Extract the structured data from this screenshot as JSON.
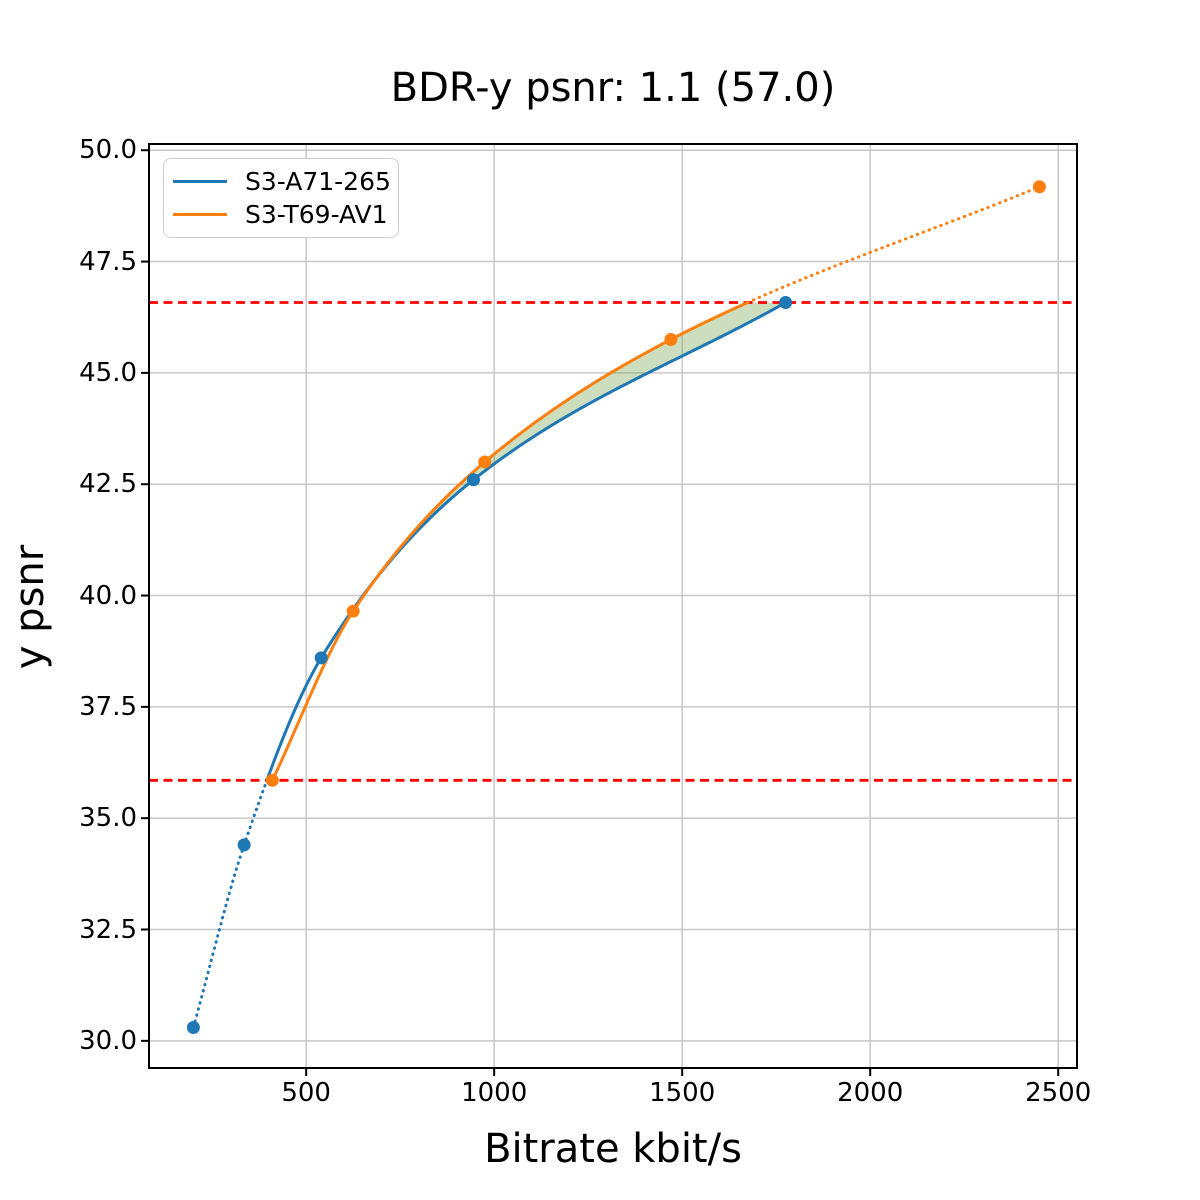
{
  "figure": {
    "title": "BDR-y psnr: 1.1 (57.0)",
    "xlabel": "Bitrate kbit/s",
    "ylabel": "y psnr"
  },
  "legend": {
    "position": "upper left",
    "items": [
      {
        "label": "S3-A71-265",
        "color": "#1f77b4"
      },
      {
        "label": "S3-T69-AV1",
        "color": "#ff7f0e"
      }
    ]
  },
  "chart_data": {
    "type": "line",
    "title": "BDR-y psnr: 1.1 (57.0)",
    "xlabel": "Bitrate kbit/s",
    "ylabel": "y psnr",
    "xlim": [
      82,
      2550
    ],
    "ylim": [
      29.39,
      50.14
    ],
    "xticks": [
      500,
      1000,
      1500,
      2000,
      2500
    ],
    "xtick_labels": [
      "500",
      "1000",
      "1500",
      "2000",
      "2500"
    ],
    "yticks": [
      30.0,
      32.5,
      35.0,
      37.5,
      40.0,
      42.5,
      45.0,
      47.5,
      50.0
    ],
    "ytick_labels": [
      "30.0",
      "32.5",
      "35.0",
      "37.5",
      "40.0",
      "42.5",
      "45.0",
      "47.5",
      "50.0"
    ],
    "grid": true,
    "grid_color": "#c8c8c8",
    "series": [
      {
        "name": "S3-A71-265",
        "color": "#1f77b4",
        "marker": "circle",
        "points": [
          [
            200,
            30.3
          ],
          [
            335,
            34.4
          ],
          [
            540,
            38.6
          ],
          [
            945,
            42.6
          ],
          [
            1775,
            46.58
          ]
        ]
      },
      {
        "name": "S3-T69-AV1",
        "color": "#ff7f0e",
        "marker": "circle",
        "points": [
          [
            410,
            35.85
          ],
          [
            625,
            39.65
          ],
          [
            975,
            43.0
          ],
          [
            1470,
            45.75
          ],
          [
            2450,
            49.18
          ]
        ]
      }
    ],
    "reference_lines": {
      "style": "dashed",
      "color": "#ff0000",
      "y_values": [
        35.85,
        46.58
      ]
    },
    "overlap_fill": {
      "color": "#6ea046",
      "alpha": 0.35,
      "x_range": [
        410,
        1775
      ]
    }
  }
}
